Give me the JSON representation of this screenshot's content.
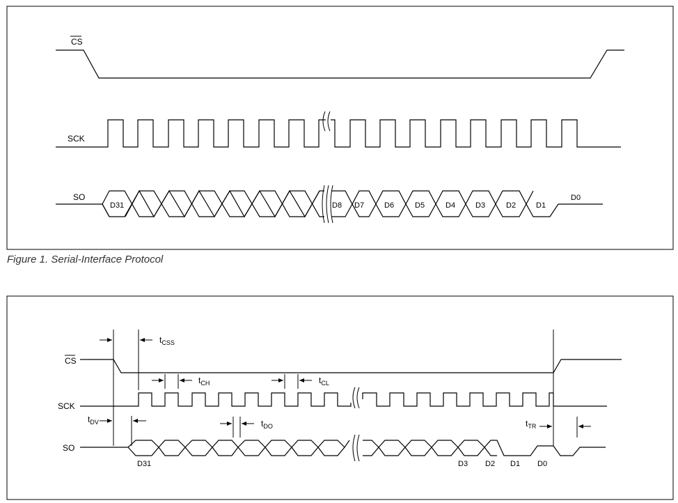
{
  "figure1": {
    "caption": "Figure 1. Serial-Interface Protocol",
    "signals": {
      "cs": "CS",
      "sck": "SCK",
      "so": "SO"
    },
    "data_labels": [
      "D31",
      "D8",
      "D7",
      "D6",
      "D5",
      "D4",
      "D3",
      "D2",
      "D1",
      "D0"
    ]
  },
  "figure2": {
    "signals": {
      "cs": "CS",
      "sck": "SCK",
      "so": "SO"
    },
    "timing": {
      "tcss": {
        "base": "t",
        "sub": "CSS"
      },
      "tch": {
        "base": "t",
        "sub": "CH"
      },
      "tcl": {
        "base": "t",
        "sub": "CL"
      },
      "tdv": {
        "base": "t",
        "sub": "DV"
      },
      "tdo": {
        "base": "t",
        "sub": "DO"
      },
      "ttr": {
        "base": "t",
        "sub": "TR"
      }
    },
    "data_labels": [
      "D31",
      "D3",
      "D2",
      "D1",
      "D0"
    ]
  }
}
